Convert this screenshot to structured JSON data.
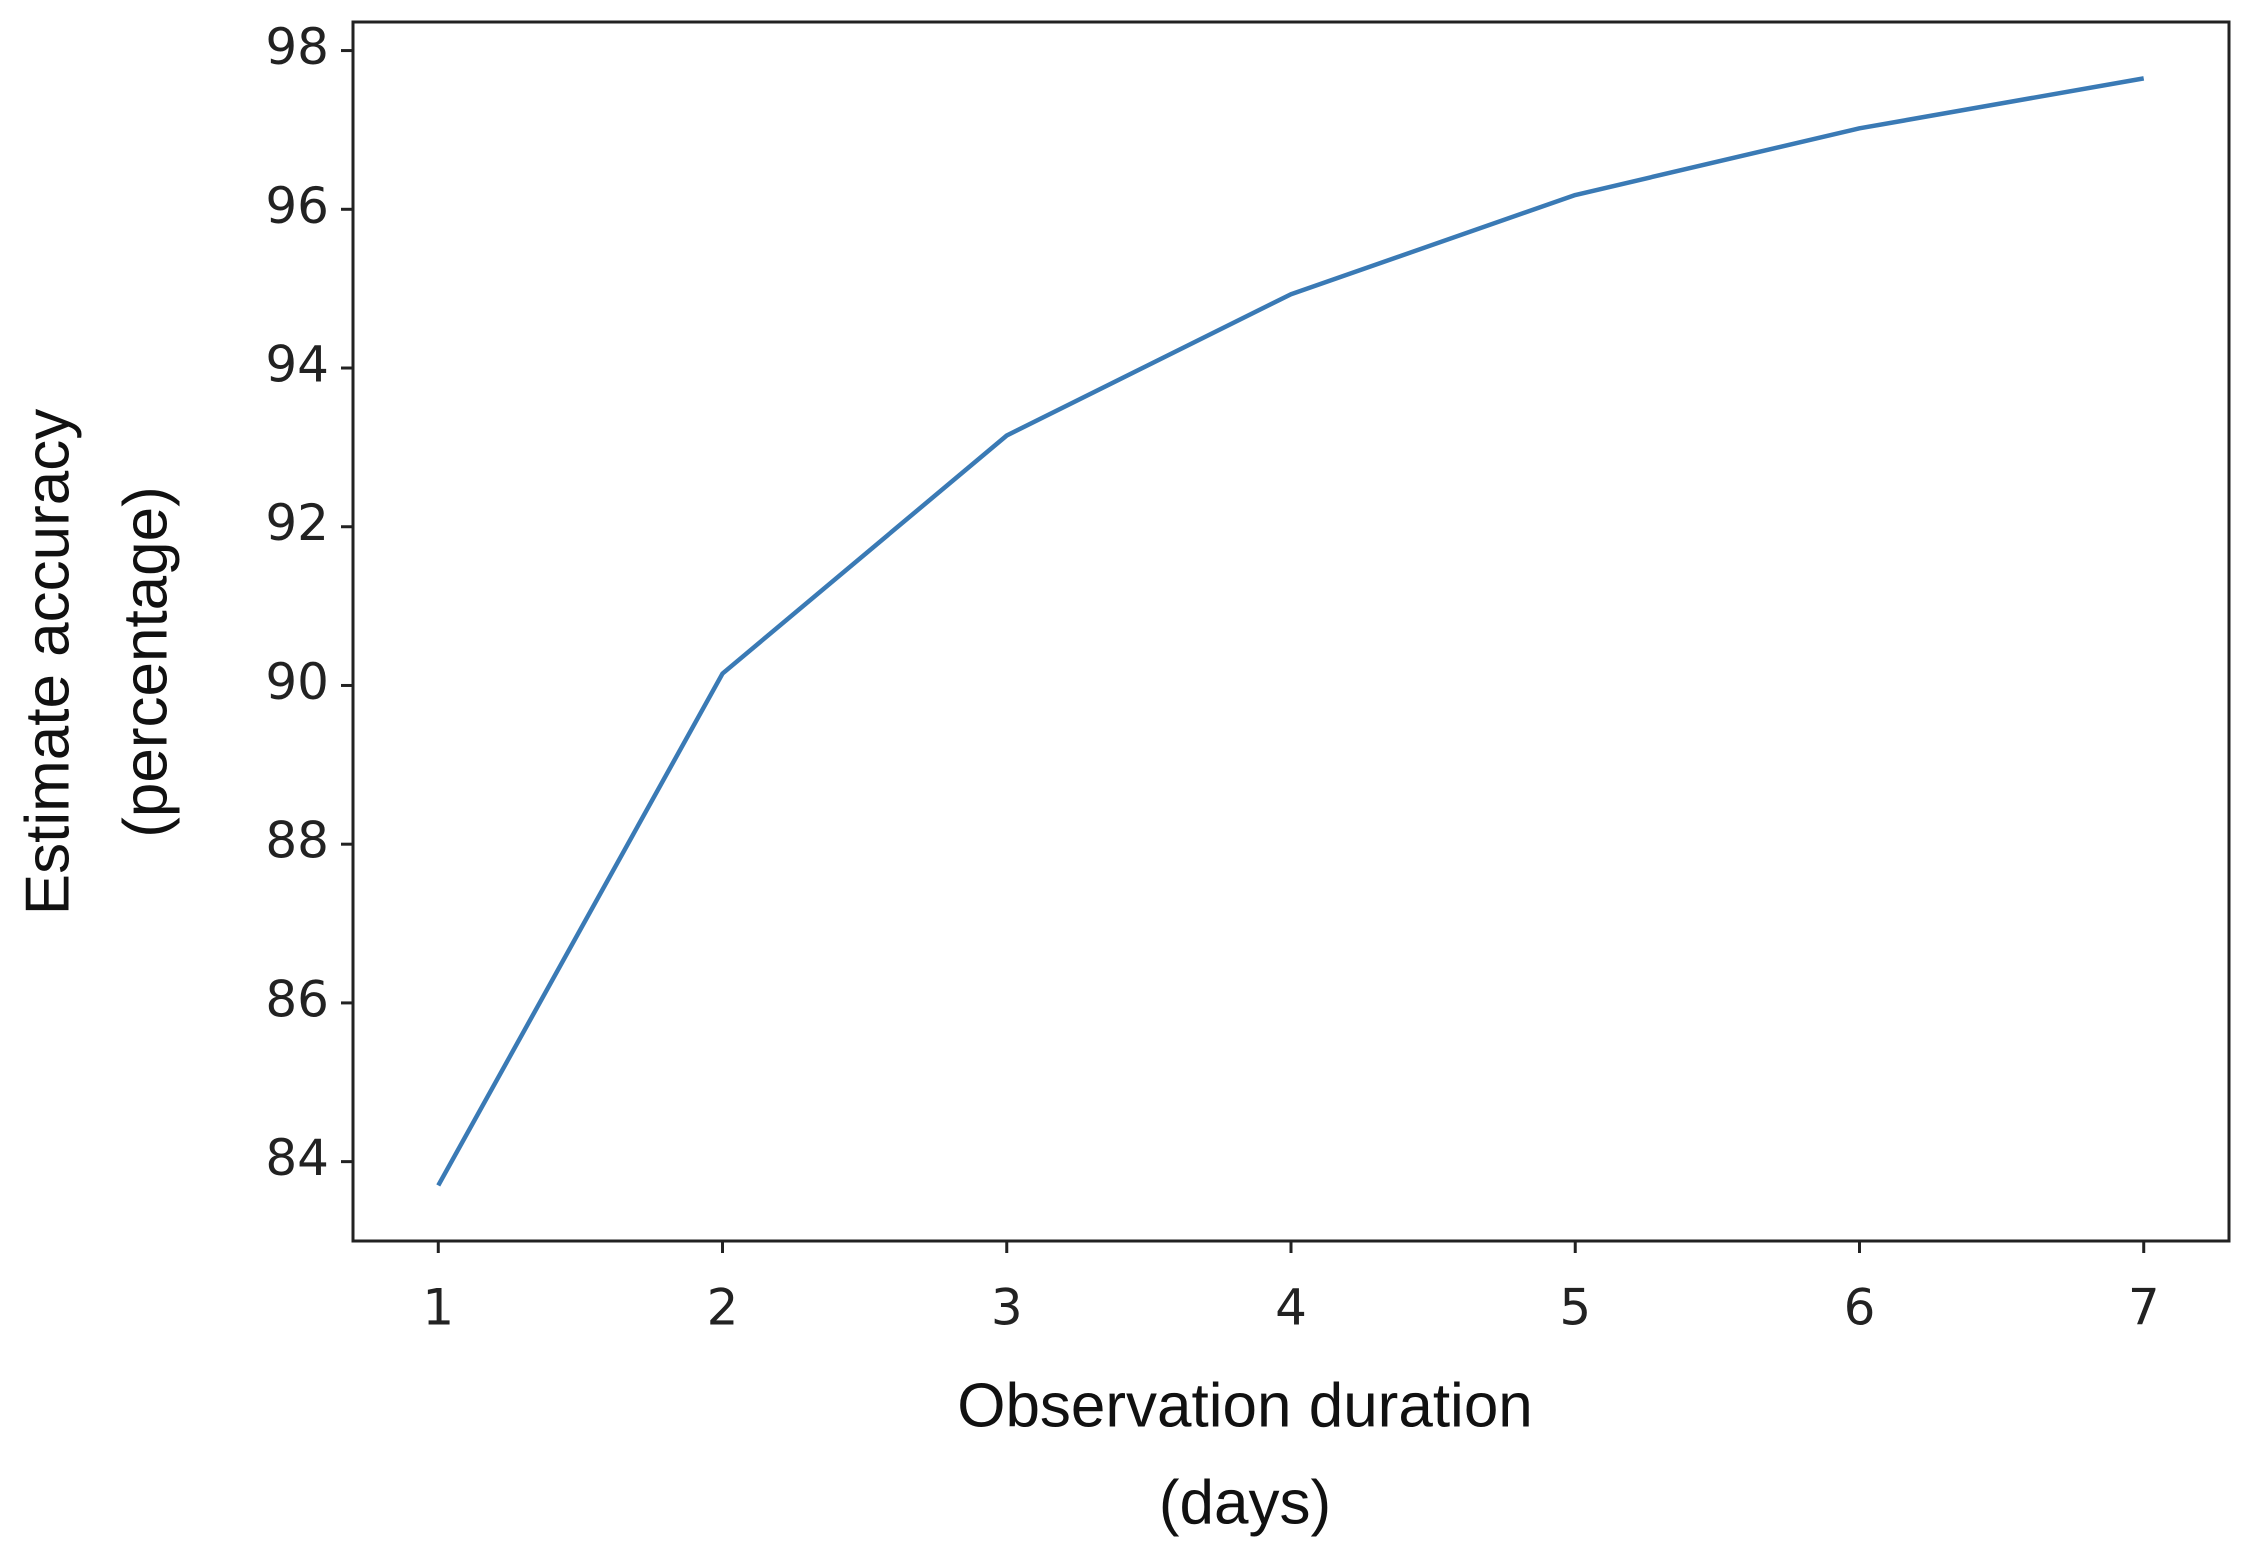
{
  "chart_data": {
    "type": "line",
    "xlabel": [
      "Observation duration",
      "(days)"
    ],
    "ylabel": [
      "Estimate accuracy",
      "(percentage)"
    ],
    "x": [
      1,
      2,
      3,
      4,
      5,
      6,
      7
    ],
    "series": [
      {
        "color": "#3a7ab5",
        "values": [
          83.7,
          90.15,
          93.15,
          94.93,
          96.18,
          97.02,
          97.65
        ]
      }
    ],
    "xlim": [
      0.7,
      7.3
    ],
    "xticks": [
      1,
      2,
      3,
      4,
      5,
      6,
      7
    ],
    "ylim": [
      83,
      98.36
    ],
    "yticks": [
      84,
      86,
      88,
      90,
      92,
      94,
      96,
      98
    ],
    "grid": false
  }
}
